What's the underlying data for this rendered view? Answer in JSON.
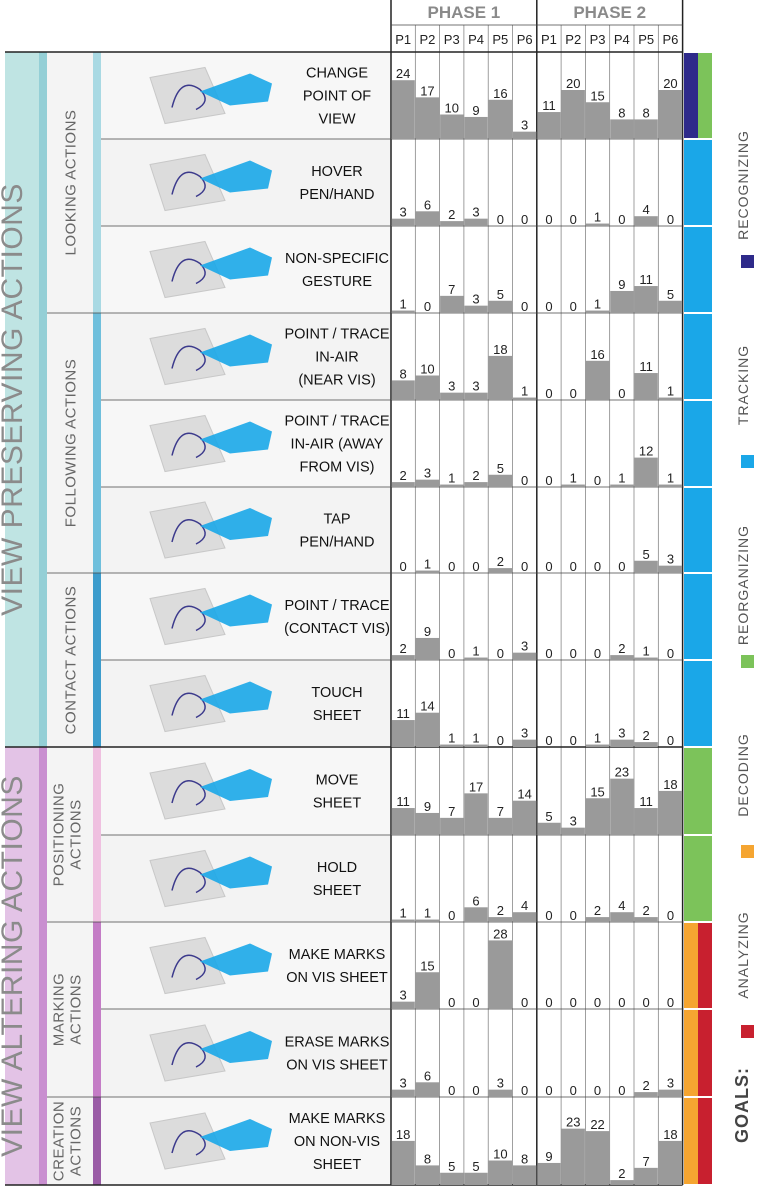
{
  "chart_data": {
    "type": "bar",
    "phases": [
      {
        "name": "PHASE 1",
        "participants": [
          "P1",
          "P2",
          "P3",
          "P4",
          "P5",
          "P6"
        ]
      },
      {
        "name": "PHASE 2",
        "participants": [
          "P1",
          "P2",
          "P3",
          "P4",
          "P5",
          "P6"
        ]
      }
    ],
    "groups": [
      {
        "name": "VIEW PRESERVING ACTIONS",
        "subgroups": [
          "LOOKING ACTIONS",
          "FOLLOWING ACTIONS",
          "CONTACT ACTIONS"
        ]
      },
      {
        "name": "VIEW ALTERING ACTIONS",
        "subgroups": [
          "POSITIONING ACTIONS",
          "MARKING ACTIONS",
          "CREATION ACTIONS"
        ]
      }
    ],
    "rows": [
      {
        "label": [
          "CHANGE",
          "POINT OF",
          "VIEW"
        ],
        "phase1": [
          24,
          17,
          10,
          9,
          16,
          3
        ],
        "phase2": [
          11,
          20,
          15,
          8,
          8,
          20
        ],
        "goals": [
          "RECOGNIZING",
          "REORGANIZING"
        ]
      },
      {
        "label": [
          "HOVER",
          "PEN/HAND"
        ],
        "phase1": [
          3,
          6,
          2,
          3,
          0,
          0
        ],
        "phase2": [
          0,
          0,
          1,
          0,
          4,
          0
        ],
        "goals": [
          "TRACKING"
        ]
      },
      {
        "label": [
          "NON-SPECIFIC",
          "GESTURE"
        ],
        "phase1": [
          1,
          0,
          7,
          3,
          5,
          0
        ],
        "phase2": [
          0,
          0,
          1,
          9,
          11,
          5
        ],
        "goals": [
          "TRACKING"
        ]
      },
      {
        "label": [
          "POINT / TRACE",
          "IN-AIR",
          "(NEAR VIS)"
        ],
        "phase1": [
          8,
          10,
          3,
          3,
          18,
          1
        ],
        "phase2": [
          0,
          0,
          16,
          0,
          11,
          1
        ],
        "goals": [
          "TRACKING"
        ]
      },
      {
        "label": [
          "POINT / TRACE",
          "IN-AIR (AWAY",
          "FROM VIS)"
        ],
        "phase1": [
          2,
          3,
          1,
          2,
          5,
          0
        ],
        "phase2": [
          0,
          1,
          0,
          1,
          12,
          1
        ],
        "goals": [
          "TRACKING"
        ]
      },
      {
        "label": [
          "TAP",
          "PEN/HAND"
        ],
        "phase1": [
          0,
          1,
          0,
          0,
          2,
          0
        ],
        "phase2": [
          0,
          0,
          0,
          0,
          5,
          3
        ],
        "goals": [
          "TRACKING"
        ]
      },
      {
        "label": [
          "POINT / TRACE",
          "(CONTACT VIS)"
        ],
        "phase1": [
          2,
          9,
          0,
          1,
          0,
          3
        ],
        "phase2": [
          0,
          0,
          0,
          2,
          1,
          0
        ],
        "goals": [
          "TRACKING"
        ]
      },
      {
        "label": [
          "TOUCH",
          "SHEET"
        ],
        "phase1": [
          11,
          14,
          1,
          1,
          0,
          3
        ],
        "phase2": [
          0,
          0,
          1,
          3,
          2,
          0
        ],
        "goals": [
          "TRACKING"
        ]
      },
      {
        "label": [
          "MOVE",
          "SHEET"
        ],
        "phase1": [
          11,
          9,
          7,
          17,
          7,
          14
        ],
        "phase2": [
          5,
          3,
          15,
          23,
          11,
          18
        ],
        "goals": [
          "REORGANIZING"
        ]
      },
      {
        "label": [
          "HOLD",
          "SHEET"
        ],
        "phase1": [
          1,
          1,
          0,
          6,
          2,
          4
        ],
        "phase2": [
          0,
          0,
          2,
          4,
          2,
          0
        ],
        "goals": [
          "REORGANIZING"
        ]
      },
      {
        "label": [
          "MAKE MARKS",
          "ON VIS SHEET"
        ],
        "phase1": [
          3,
          15,
          0,
          0,
          28,
          0
        ],
        "phase2": [
          0,
          0,
          0,
          0,
          0,
          0
        ],
        "goals": [
          "DECODING",
          "ANALYZING"
        ]
      },
      {
        "label": [
          "ERASE MARKS",
          "ON VIS SHEET"
        ],
        "phase1": [
          3,
          6,
          0,
          0,
          3,
          0
        ],
        "phase2": [
          0,
          0,
          0,
          0,
          2,
          3
        ],
        "goals": [
          "DECODING",
          "ANALYZING"
        ]
      },
      {
        "label": [
          "MAKE MARKS",
          "ON NON-VIS",
          "SHEET"
        ],
        "phase1": [
          18,
          8,
          5,
          5,
          10,
          8
        ],
        "phase2": [
          9,
          23,
          22,
          2,
          7,
          18
        ],
        "goals": [
          "DECODING",
          "ANALYZING"
        ]
      }
    ],
    "legend": {
      "title": "GOALS:",
      "entries": [
        {
          "name": "RECOGNIZING",
          "color": "#2e2a8a"
        },
        {
          "name": "TRACKING",
          "color": "#1aa7e8"
        },
        {
          "name": "REORGANIZING",
          "color": "#7cc35a"
        },
        {
          "name": "DECODING",
          "color": "#f5a531"
        },
        {
          "name": "ANALYZING",
          "color": "#c8202f"
        }
      ]
    },
    "bar_color": "#9a9a9a",
    "highlight_color": "#8a8a8a"
  }
}
